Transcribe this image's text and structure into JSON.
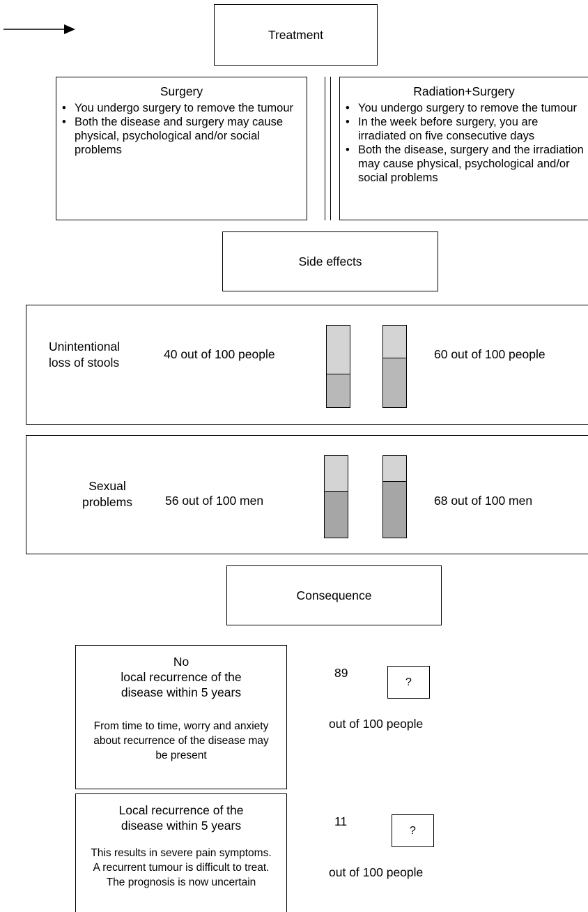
{
  "header": {
    "title": "Treatment"
  },
  "options": {
    "surgery": {
      "title": "Surgery",
      "bullets": [
        "You undergo surgery to remove the tumour",
        "Both the disease and surgery may cause physical, psychological and/or social problems"
      ]
    },
    "radiation_surgery": {
      "title": "Radiation+Surgery",
      "bullets": [
        "You undergo surgery to remove the tumour",
        "In the week before surgery, you are irradiated on five consecutive days",
        "Both the disease, surgery and the irradiation may cause physical, psychological and/or social problems"
      ]
    }
  },
  "side_effects": {
    "title": "Side effects",
    "rows": [
      {
        "label_line1": "Unintentional",
        "label_line2": "loss of stools",
        "left_text": "40 out of 100 people",
        "right_text": "60 out of 100 people",
        "left_value": 40,
        "right_value": 60,
        "fill_color": "#b8b8b8"
      },
      {
        "label_line1": "Sexual",
        "label_line2": "problems",
        "left_text": "56 out of 100 men",
        "right_text": "68 out of 100 men",
        "left_value": 56,
        "right_value": 68,
        "fill_color": "#a6a6a6"
      }
    ]
  },
  "consequence": {
    "title": "Consequence",
    "outcomes": [
      {
        "title_line1": "No",
        "title_line2": "local recurrence of the",
        "title_line3": "disease within 5 years",
        "desc": "From time to time, worry and anxiety about recurrence of the disease may be present",
        "count": "89",
        "count_label": "out of 100 people",
        "unknown": "?"
      },
      {
        "title_line1": "Local recurrence of the",
        "title_line2": "disease within 5 years",
        "desc": "This results in severe pain symptoms. A recurrent tumour is difficult to treat. The prognosis is now uncertain",
        "count": "11",
        "count_label": "out of 100 people",
        "unknown": "?"
      }
    ]
  },
  "colors": {
    "bar_background": "#d4d4d4",
    "border": "#000000"
  }
}
